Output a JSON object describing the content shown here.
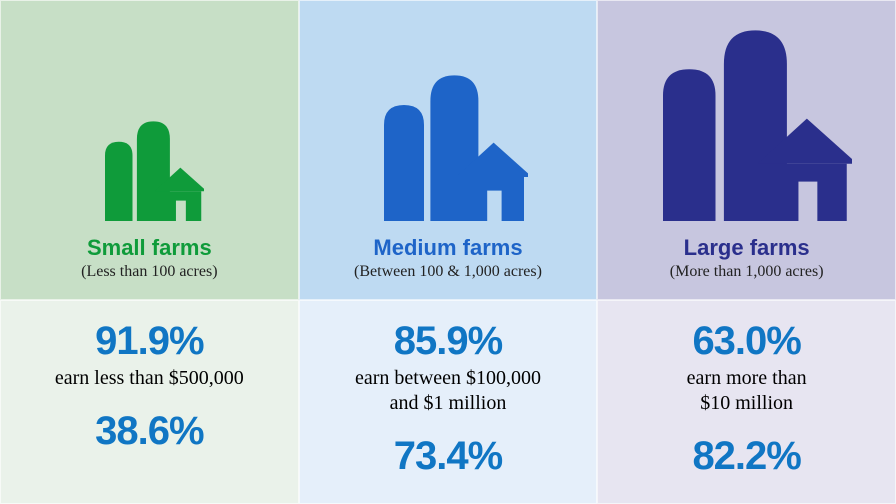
{
  "panels": [
    {
      "bg_top": "#c7dfc6",
      "bg_bottom": "#eaf2ea",
      "icon_color": "#0f9b3a",
      "icon_scale": 0.55,
      "title": "Small farms",
      "title_color": "#0f9b3a",
      "subtitle": "(Less than 100 acres)",
      "pct1": "91.9%",
      "earn": "earn less than $500,000",
      "pct2": "38.6%",
      "pct_color": "#1076c4"
    },
    {
      "bg_top": "#bedaf2",
      "bg_bottom": "#e5effa",
      "icon_color": "#1e64c8",
      "icon_scale": 0.8,
      "title": "Medium farms",
      "title_color": "#1e64c8",
      "subtitle": "(Between 100 & 1,000 acres)",
      "pct1": "85.9%",
      "earn": "earn between $100,000\nand $1 million",
      "pct2": "73.4%",
      "pct_color": "#1076c4"
    },
    {
      "bg_top": "#c7c6df",
      "bg_bottom": "#e7e5f1",
      "icon_color": "#2a2f8c",
      "icon_scale": 1.05,
      "title": "Large farms",
      "title_color": "#2a2f8c",
      "subtitle": "(More than 1,000 acres)",
      "pct1": "63.0%",
      "earn": "earn more than\n$10 million",
      "pct2": "82.2%",
      "pct_color": "#1076c4"
    }
  ],
  "title_fontsize": 22,
  "subtitle_fontsize": 16,
  "pct_fontsize": 40,
  "earn_fontsize": 20
}
